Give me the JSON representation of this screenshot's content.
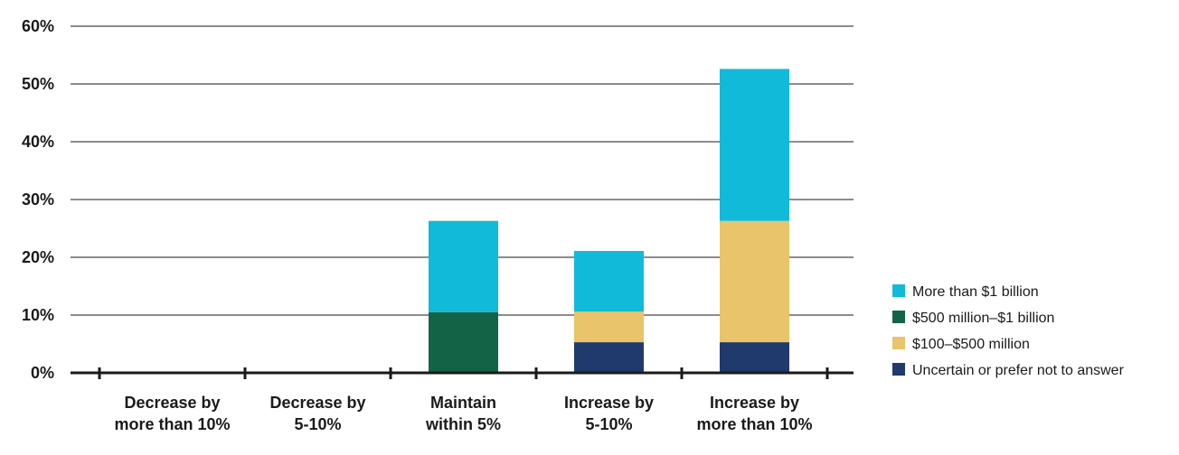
{
  "chart_data": {
    "type": "bar",
    "stacked": true,
    "title": "",
    "xlabel": "",
    "ylabel": "",
    "ylim": [
      0,
      60
    ],
    "y_ticks": [
      "0%",
      "10%",
      "20%",
      "30%",
      "40%",
      "50%",
      "60%"
    ],
    "y_tick_values": [
      0,
      10,
      20,
      30,
      40,
      50,
      60
    ],
    "grid": "horizontal",
    "legend_position": "right",
    "categories": [
      [
        "Decrease by",
        "more than 10%"
      ],
      [
        "Decrease by",
        "5-10%"
      ],
      [
        "Maintain",
        "within 5%"
      ],
      [
        "Increase by",
        "5-10%"
      ],
      [
        "Increase by",
        "more than 10%"
      ]
    ],
    "series": [
      {
        "name": "Uncertain or prefer not to answer",
        "color": "#213a6d",
        "values": [
          0,
          0,
          0,
          5.3,
          5.3
        ]
      },
      {
        "name": "$100–$500 million",
        "color": "#e9c46a",
        "values": [
          0,
          0,
          0,
          5.3,
          21.0
        ]
      },
      {
        "name": "$500 million–$1 billion",
        "color": "#136446",
        "values": [
          0,
          0,
          10.5,
          0,
          0
        ]
      },
      {
        "name": "More than $1 billion",
        "color": "#12bad9",
        "values": [
          0,
          0,
          15.8,
          10.5,
          26.3
        ]
      }
    ],
    "legend_order": [
      3,
      2,
      1,
      0
    ]
  }
}
